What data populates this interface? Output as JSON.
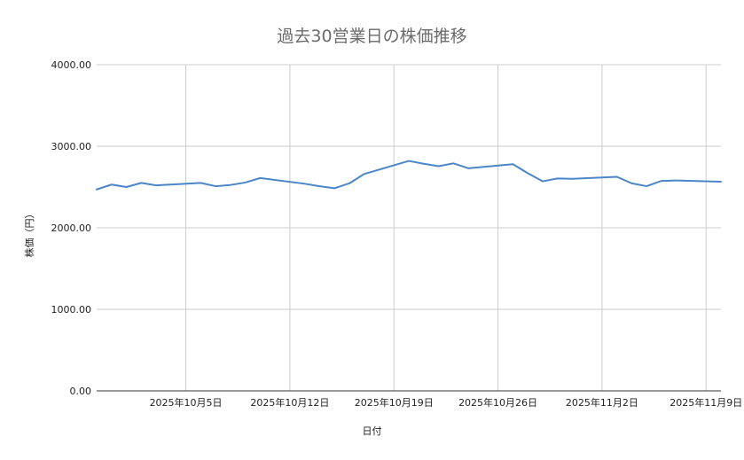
{
  "chart_data": {
    "type": "line",
    "title": "過去30営業日の株価推移",
    "xlabel": "日付",
    "ylabel": "株価（円）",
    "ylim": [
      0,
      4000
    ],
    "yticks": [
      "0.00",
      "1000.00",
      "2000.00",
      "3000.00",
      "4000.00"
    ],
    "ytick_values": [
      0,
      1000,
      2000,
      3000,
      4000
    ],
    "xlim": [
      "2025-09-29",
      "2025-11-10"
    ],
    "xticks": [
      {
        "date": "2025-10-05",
        "label": "2025年10月5日"
      },
      {
        "date": "2025-10-12",
        "label": "2025年10月12日"
      },
      {
        "date": "2025-10-19",
        "label": "2025年10月19日"
      },
      {
        "date": "2025-10-26",
        "label": "2025年10月26日"
      },
      {
        "date": "2025-11-02",
        "label": "2025年11月2日"
      },
      {
        "date": "2025-11-09",
        "label": "2025年11月9日"
      }
    ],
    "grid": true,
    "line_color": "#4a86c8",
    "series": [
      {
        "x": [
          "2025-09-29",
          "2025-09-30",
          "2025-10-01",
          "2025-10-02",
          "2025-10-03",
          "2025-10-06",
          "2025-10-07",
          "2025-10-08",
          "2025-10-09",
          "2025-10-10",
          "2025-10-13",
          "2025-10-14",
          "2025-10-15",
          "2025-10-16",
          "2025-10-17",
          "2025-10-20",
          "2025-10-21",
          "2025-10-22",
          "2025-10-23",
          "2025-10-24",
          "2025-10-27",
          "2025-10-28",
          "2025-10-29",
          "2025-10-30",
          "2025-10-31",
          "2025-11-03",
          "2025-11-04",
          "2025-11-05",
          "2025-11-06",
          "2025-11-07",
          "2025-11-10"
        ],
        "values": [
          2470,
          2530,
          2500,
          2550,
          2520,
          2550,
          2510,
          2525,
          2555,
          2610,
          2540,
          2510,
          2485,
          2545,
          2660,
          2820,
          2785,
          2755,
          2790,
          2730,
          2780,
          2670,
          2570,
          2605,
          2600,
          2625,
          2545,
          2510,
          2575,
          2580,
          2565
        ]
      }
    ]
  }
}
